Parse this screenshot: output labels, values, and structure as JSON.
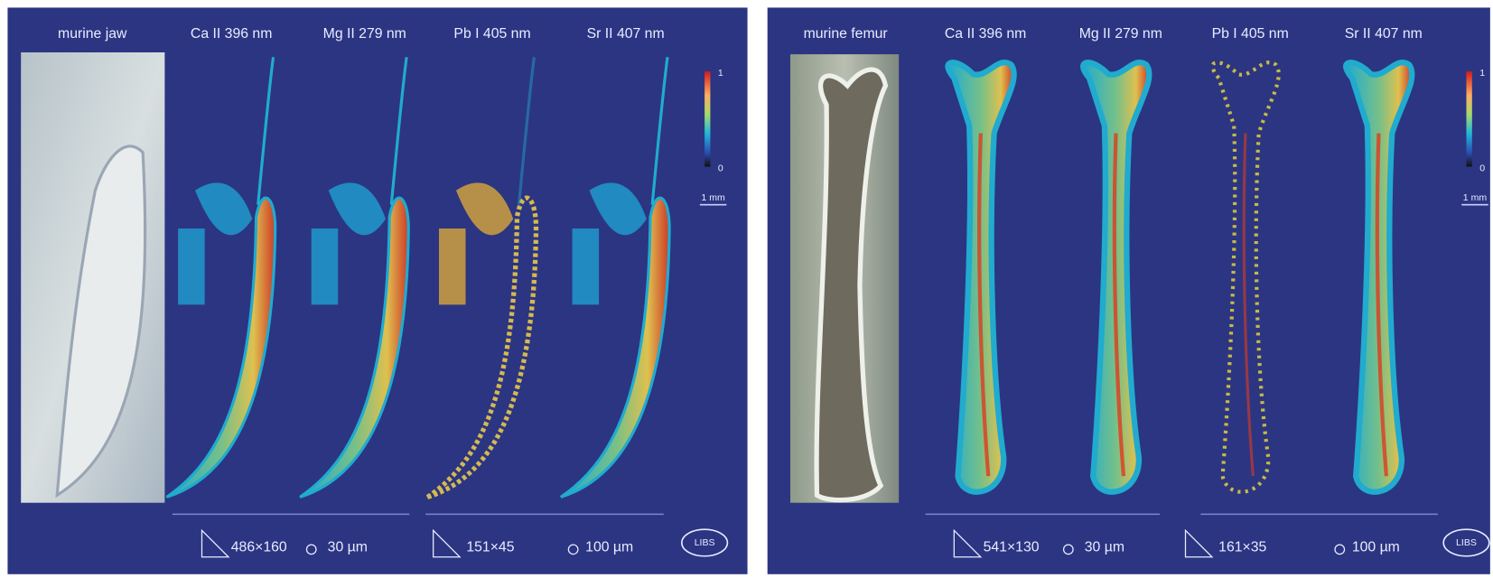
{
  "panels": [
    {
      "sample": "murine jaw",
      "maps": [
        "Ca II 396 nm",
        "Mg II 279 nm",
        "Pb I 405 nm",
        "Sr II 407 nm"
      ],
      "colorbar": {
        "max": "1",
        "min": "0"
      },
      "scale_bar": "1 mm",
      "footer": [
        {
          "size": "486×160",
          "step": "30 µm"
        },
        {
          "size": "151×45",
          "step": "100 µm"
        }
      ],
      "logo": "LIBS"
    },
    {
      "sample": "murine femur",
      "maps": [
        "Ca II 396 nm",
        "Mg II 279 nm",
        "Pb I 405 nm",
        "Sr II 407 nm"
      ],
      "colorbar": {
        "max": "1",
        "min": "0"
      },
      "scale_bar": "1 mm",
      "footer": [
        {
          "size": "541×130",
          "step": "30 µm"
        },
        {
          "size": "161×35",
          "step": "100 µm"
        }
      ],
      "logo": "LIBS"
    }
  ]
}
